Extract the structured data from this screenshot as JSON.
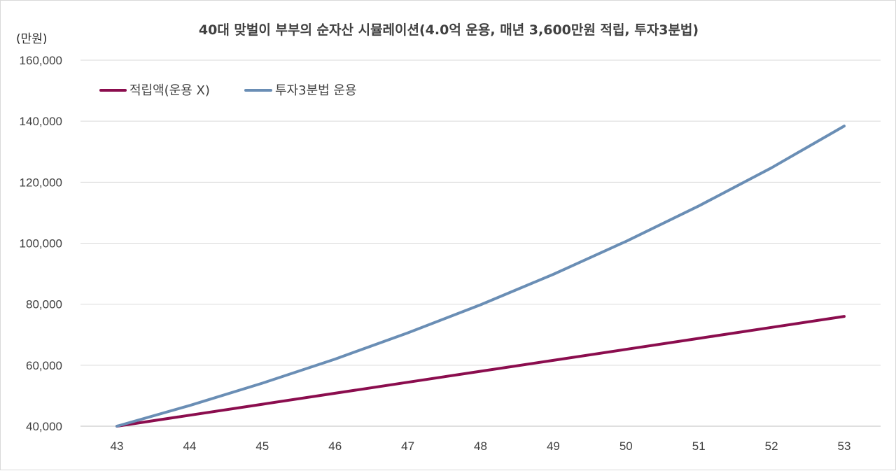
{
  "chart_data": {
    "type": "line",
    "title": "40대 맞벌이 부부의 순자산 시뮬레이션(4.0억 운용, 매년 3,600만원 적립, 투자3분법)",
    "y_unit_label": "(만원)",
    "xlabel": "",
    "ylabel": "",
    "x": [
      43,
      44,
      45,
      46,
      47,
      48,
      49,
      50,
      51,
      52,
      53
    ],
    "x_tick_labels": [
      "43",
      "44",
      "45",
      "46",
      "47",
      "48",
      "49",
      "50",
      "51",
      "52",
      "53"
    ],
    "ylim": [
      40000,
      160000
    ],
    "y_ticks": [
      40000,
      60000,
      80000,
      100000,
      120000,
      140000,
      160000
    ],
    "y_tick_labels": [
      "40,000",
      "60,000",
      "80,000",
      "100,000",
      "120,000",
      "140,000",
      "160,000"
    ],
    "grid": true,
    "legend_position": "top-left",
    "series": [
      {
        "name": "적립액(운용 X)",
        "color": "#8B0D4E",
        "values": [
          40000,
          43600,
          47200,
          50800,
          54400,
          58000,
          61600,
          65200,
          68800,
          72400,
          76000
        ]
      },
      {
        "name": "투자3분법 운용",
        "color": "#6A8EB5",
        "values": [
          40000,
          46800,
          54100,
          62000,
          70600,
          79800,
          89800,
          100600,
          112200,
          124700,
          138400
        ]
      }
    ]
  }
}
